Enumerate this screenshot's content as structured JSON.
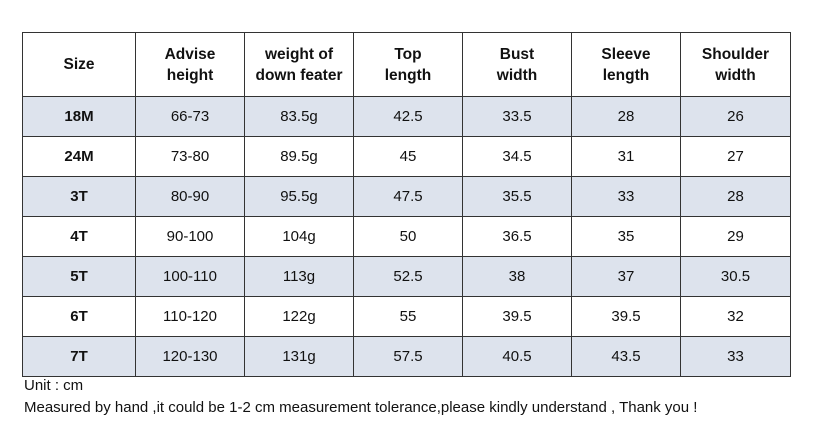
{
  "table": {
    "header": [
      "Size",
      "Advise\nheight",
      "weight of\ndown feater",
      "Top\nlength",
      "Bust\nwidth",
      "Sleeve\nlength",
      "Shoulder\nwidth"
    ],
    "rows": [
      [
        "18M",
        "66-73",
        "83.5g",
        "42.5",
        "33.5",
        "28",
        "26"
      ],
      [
        "24M",
        "73-80",
        "89.5g",
        "45",
        "34.5",
        "31",
        "27"
      ],
      [
        "3T",
        "80-90",
        "95.5g",
        "47.5",
        "35.5",
        "33",
        "28"
      ],
      [
        "4T",
        "90-100",
        "104g",
        "50",
        "36.5",
        "35",
        "29"
      ],
      [
        "5T",
        "100-110",
        "113g",
        "52.5",
        "38",
        "37",
        "30.5"
      ],
      [
        "6T",
        "110-120",
        "122g",
        "55",
        "39.5",
        "39.5",
        "32"
      ],
      [
        "7T",
        "120-130",
        "131g",
        "57.5",
        "40.5",
        "43.5",
        "33"
      ]
    ]
  },
  "notes": [
    "Unit : cm",
    "Measured by hand ,it could be 1-2 cm measurement tolerance,please kindly understand , Thank you !"
  ]
}
